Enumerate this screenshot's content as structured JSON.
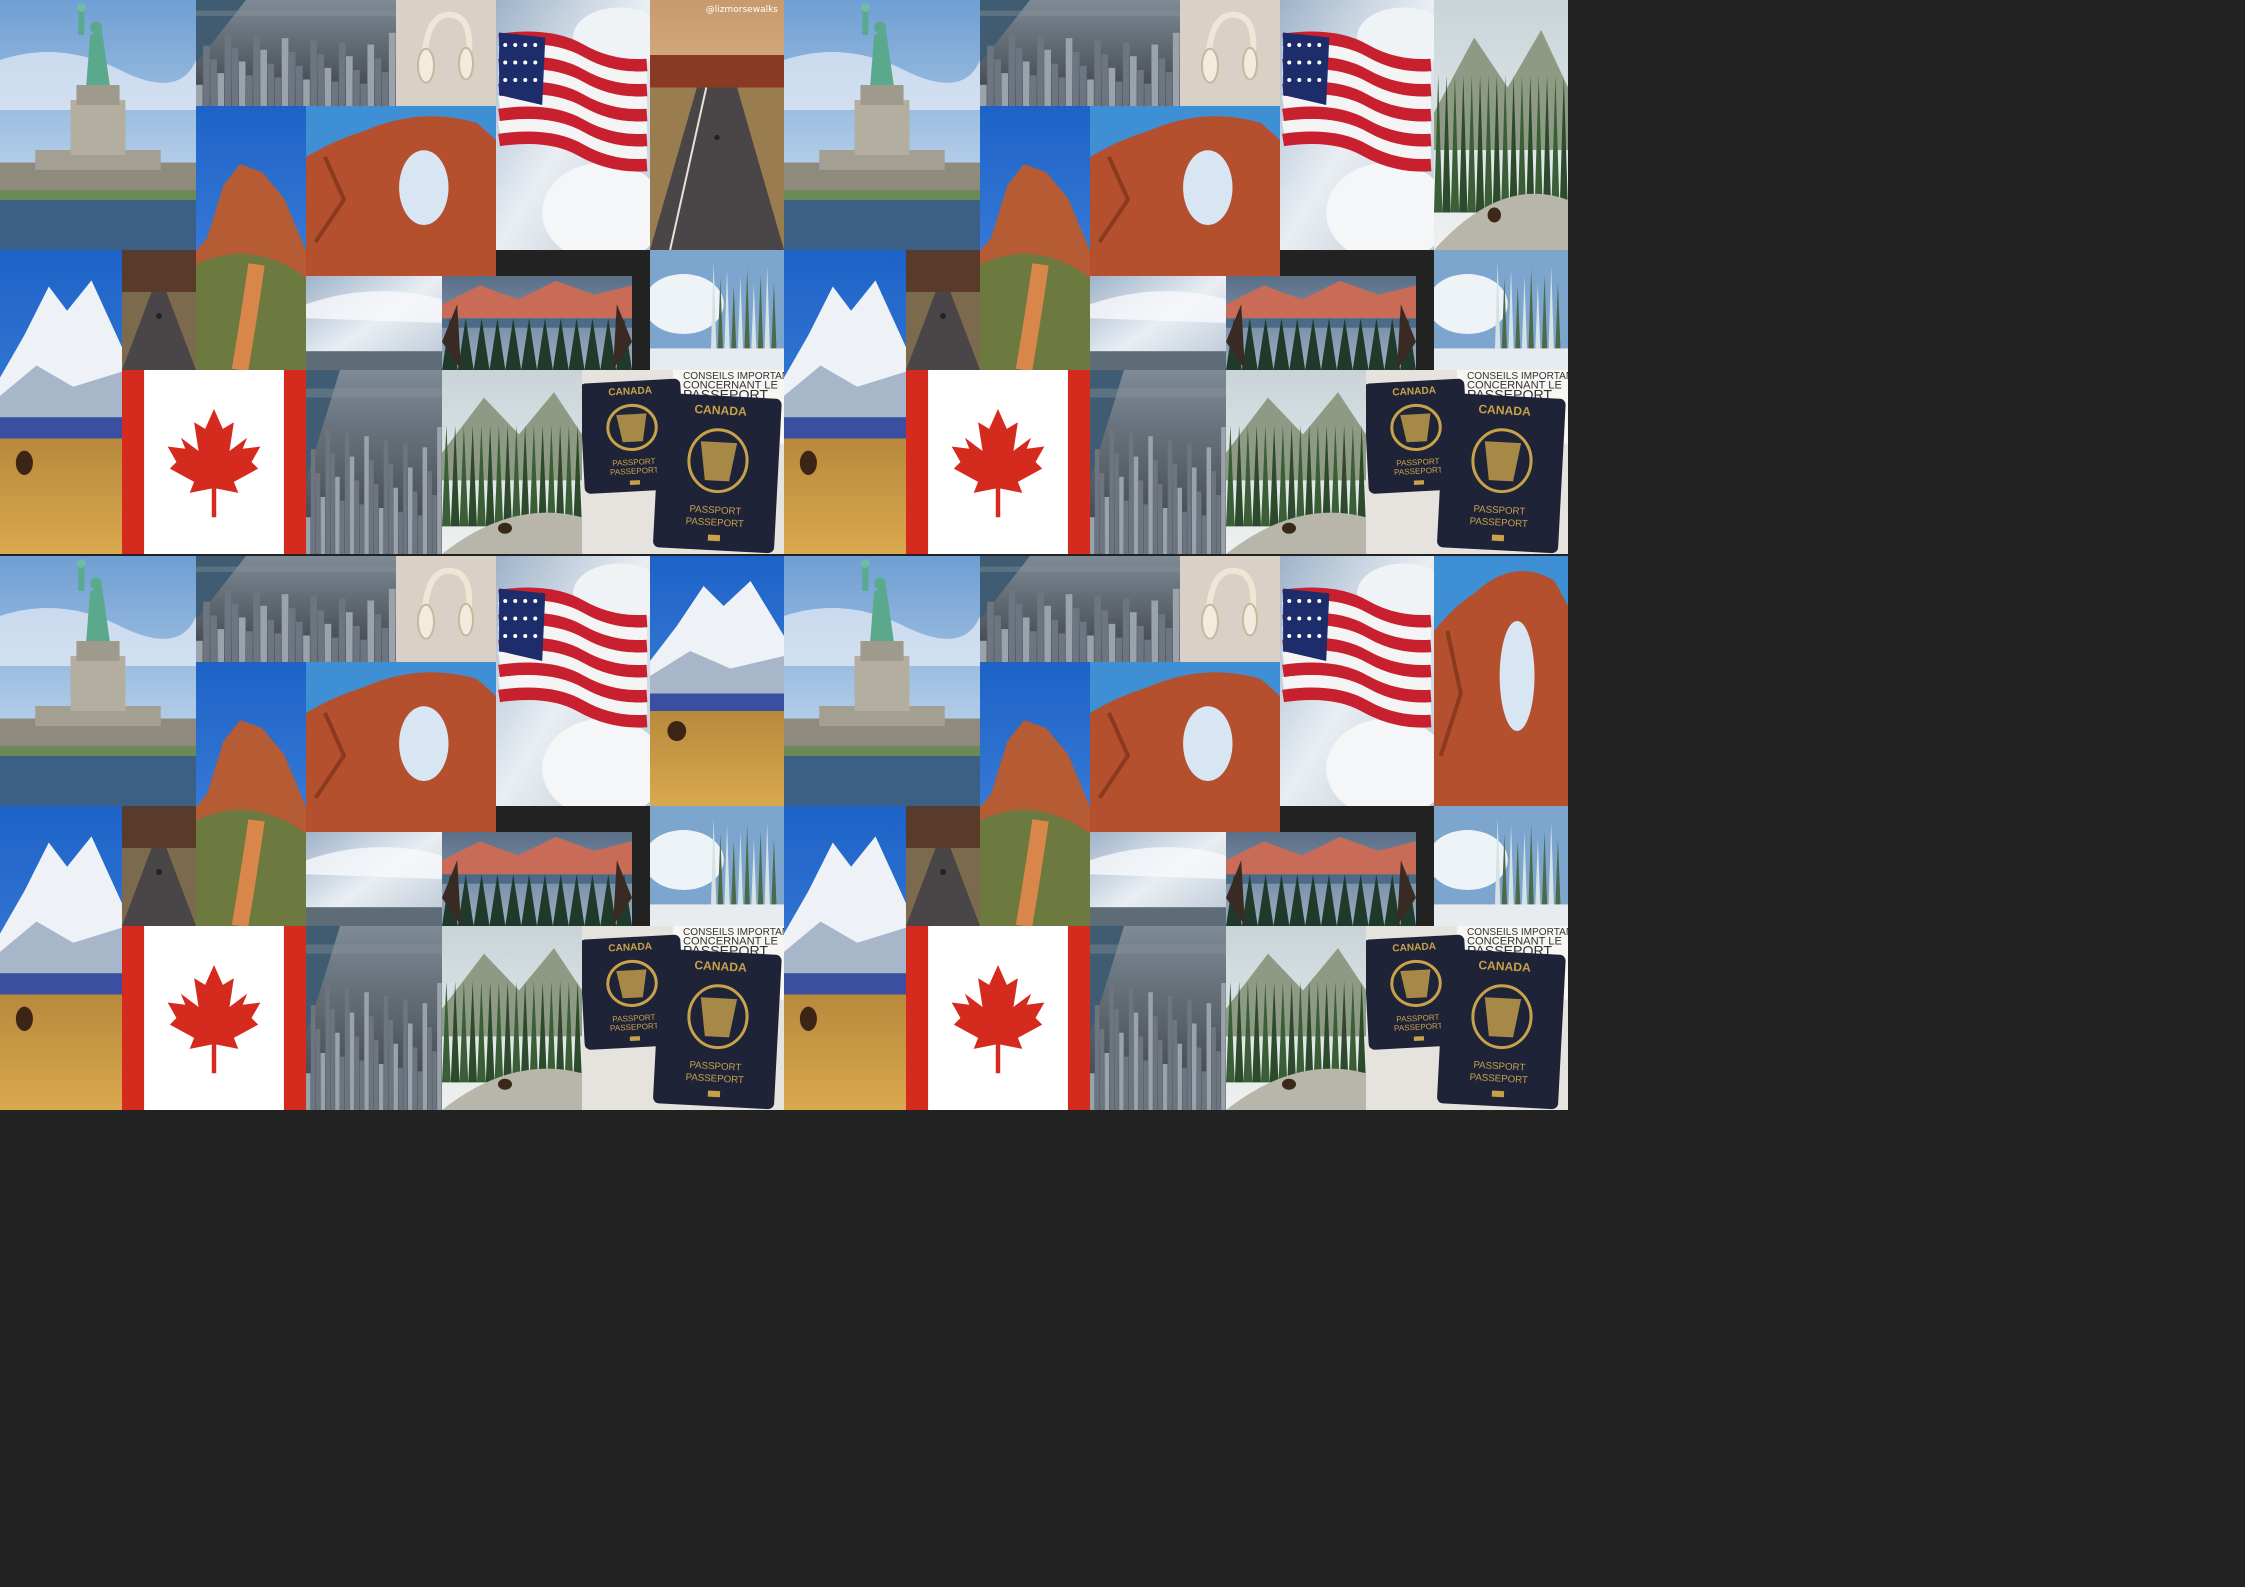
{
  "collage": {
    "quadrants": [
      {
        "id": "top-left",
        "tr_variant": "road"
      },
      {
        "id": "top-right",
        "tr_variant": "forest-bear"
      },
      {
        "id": "bottom-left",
        "tr_variant": "denali-moose"
      },
      {
        "id": "bottom-right",
        "tr_variant": "arch"
      }
    ]
  },
  "texts": {
    "passport_country": "CANADA",
    "passport_label_en": "PASSPORT",
    "passport_label_fr": "PASSEPORT",
    "paper_line1": "CONSEILS IMPORTANTS",
    "paper_line2": "CONCERNANT LE",
    "paper_line3": "PASSEPORT",
    "watermark": "@lizmorsewalks"
  },
  "colors": {
    "canada_red": "#D52B1E",
    "passport_navy": "#1E2338",
    "gold": "#C8A24A",
    "sky": "#8FB4DB",
    "arch_red": "#B5502E"
  }
}
